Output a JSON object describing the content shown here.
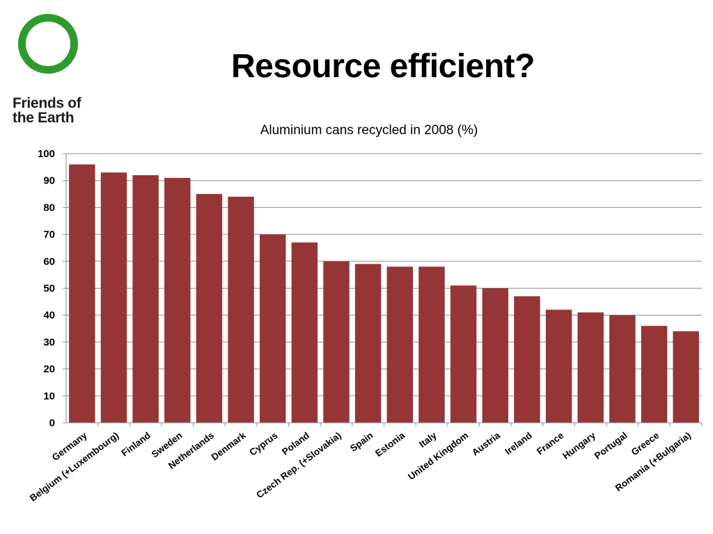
{
  "slide": {
    "title": "Resource efficient?"
  },
  "logo": {
    "line1": "Friends of",
    "line2": "the Earth",
    "icon": "green-circle-icon"
  },
  "colors": {
    "bar": "#953535",
    "logo_green": "#2e9b2e",
    "grid": "#8c8c8c"
  },
  "chart_data": {
    "type": "bar",
    "title": "Aluminium cans recycled in 2008 (%)",
    "xlabel": "",
    "ylabel": "",
    "ylim": [
      0,
      100
    ],
    "yticks": [
      0,
      10,
      20,
      30,
      40,
      50,
      60,
      70,
      80,
      90,
      100
    ],
    "grid": true,
    "categories": [
      "Germany",
      "Belgium (+Luxembourg)",
      "Finland",
      "Sweden",
      "Netherlands",
      "Denmark",
      "Cyprus",
      "Poland",
      "Czech Rep. (+Slovakia)",
      "Spain",
      "Estonia",
      "Italy",
      "United Kingdom",
      "Austria",
      "Ireland",
      "France",
      "Hungary",
      "Portugal",
      "Greece",
      "Romania (+Bulgaria)"
    ],
    "values": [
      96,
      93,
      92,
      91,
      85,
      84,
      70,
      67,
      60,
      59,
      58,
      58,
      51,
      50,
      47,
      42,
      41,
      40,
      36,
      34
    ]
  }
}
